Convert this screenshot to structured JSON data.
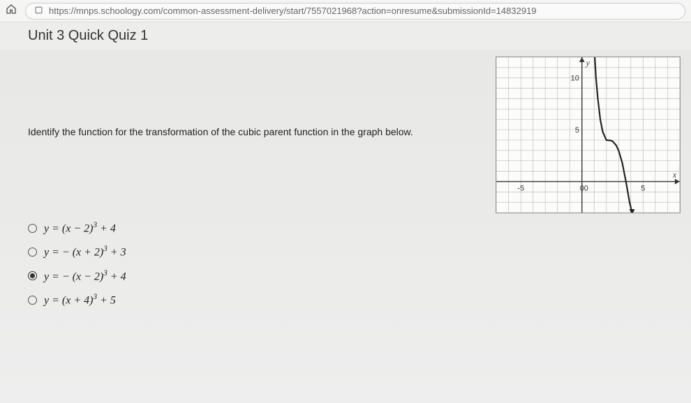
{
  "browser": {
    "url": "https://mnps.schoology.com/common-assessment-delivery/start/7557021968?action=onresume&submissionId=14832919"
  },
  "page": {
    "title": "Unit 3 Quick Quiz 1"
  },
  "question": {
    "prompt": "Identify the function for the transformation of the cubic parent function in the graph below."
  },
  "chart": {
    "type": "line",
    "xlim": [
      -7,
      8
    ],
    "ylim": [
      -3,
      12
    ],
    "xtick_major": [
      -5,
      0,
      5
    ],
    "ytick_major": [
      5,
      10
    ],
    "grid_on": true,
    "background_color": "#fcfcfa",
    "grid_color": "#bfbfbf",
    "axis_color": "#333333",
    "curve_color": "#222222",
    "curve_width": 2.2,
    "axis_label_x": "x",
    "axis_label_y": "y",
    "label_fontsize": 12,
    "tick_fontsize": 11,
    "curve_points": [
      [
        1.05,
        12
      ],
      [
        1.15,
        10
      ],
      [
        1.3,
        8
      ],
      [
        1.5,
        6
      ],
      [
        1.7,
        4.8
      ],
      [
        2,
        4
      ],
      [
        2.3,
        3.97
      ],
      [
        2.5,
        3.9
      ],
      [
        2.8,
        3.5
      ],
      [
        3,
        3
      ],
      [
        3.3,
        1.8
      ],
      [
        3.6,
        0
      ],
      [
        3.9,
        -2
      ],
      [
        4.1,
        -3
      ]
    ]
  },
  "options": {
    "items": [
      {
        "id": "a",
        "expr_html": "y = (x − 2)<sup>3</sup> + 4",
        "selected": false
      },
      {
        "id": "b",
        "expr_html": "y = − (x + 2)<sup>3</sup> + 3",
        "selected": false
      },
      {
        "id": "c",
        "expr_html": "y = − (x − 2)<sup>3</sup> + 4",
        "selected": true
      },
      {
        "id": "d",
        "expr_html": "y = (x + 4)<sup>3</sup> + 5",
        "selected": false
      }
    ]
  }
}
